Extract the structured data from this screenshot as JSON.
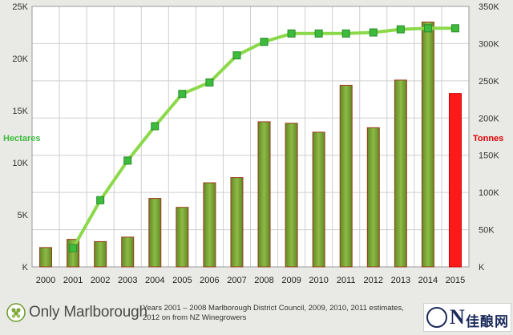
{
  "chart_data": {
    "type": "bar+line",
    "categories": [
      "2000",
      "2001",
      "2002",
      "2003",
      "2004",
      "2005",
      "2006",
      "2007",
      "2008",
      "2009",
      "2010",
      "2011",
      "2012",
      "2013",
      "2014",
      "2015"
    ],
    "bars": {
      "name": "Tonnes",
      "axis": "right",
      "values": [
        26000,
        37000,
        34000,
        40000,
        92000,
        80000,
        113000,
        120000,
        195000,
        193000,
        181000,
        244000,
        187000,
        251000,
        329000,
        233000
      ],
      "color": "#7ea83a",
      "highlight_color": "#ff1a1a",
      "highlight_category": "2015"
    },
    "line": {
      "name": "Hectares",
      "axis": "left",
      "values": [
        null,
        1800,
        6400,
        10200,
        13500,
        16600,
        17700,
        20300,
        21600,
        22400,
        22400,
        22400,
        22500,
        22800,
        22900,
        22900
      ],
      "color": "#8bd94a",
      "marker_color": "#3dbb3d"
    },
    "left_axis": {
      "label": "Hectares",
      "ticks": [
        "K",
        "5K",
        "10K",
        "15K",
        "20K",
        "25K"
      ],
      "ylim": [
        0,
        25000
      ],
      "label_color": "#3dbb3d"
    },
    "right_axis": {
      "label": "Tonnes",
      "ticks": [
        "K",
        "50K",
        "100K",
        "150K",
        "200K",
        "250K",
        "300K",
        "350K"
      ],
      "ylim": [
        0,
        350000
      ],
      "label_color": "#dd0000"
    },
    "grid": true
  },
  "footer": {
    "brand": "Only Marlborough",
    "source_line1": "Years 2001 – 2008 Marlborough District Council, 2009, 2010, 2011 estimates,",
    "source_line2": "2012 on from NZ Winegrowers",
    "badge_letter": "N",
    "badge_text": "佳酿网"
  },
  "colors": {
    "background": "#e9e9e6",
    "plot_background": "#ffffff",
    "grid": "#cfcfcf",
    "bar_border": "#9b3c1c"
  }
}
